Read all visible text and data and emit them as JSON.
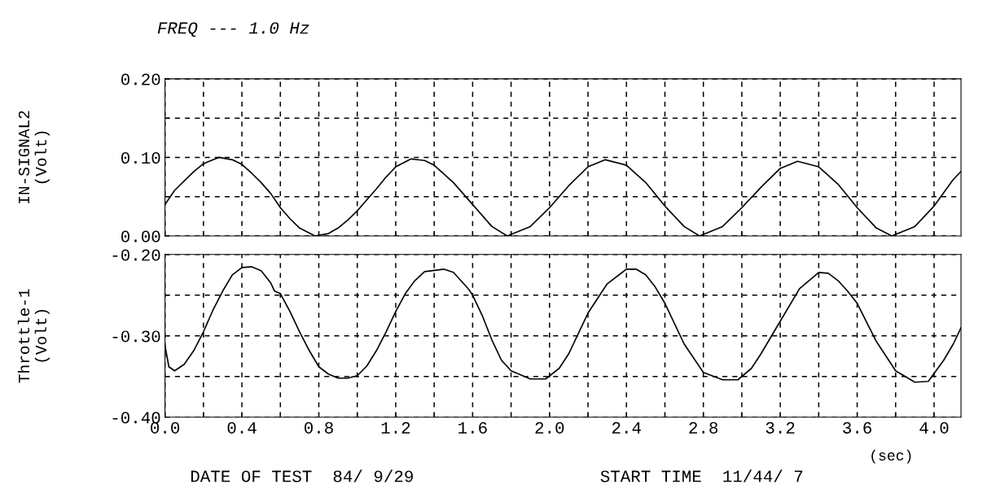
{
  "chart_data": [
    {
      "type": "line",
      "title": "FREQ --- 1.0 Hz",
      "ylabel": "IN-SIGNAL2\n(Volt)",
      "xlim": [
        0,
        4.14
      ],
      "ylim": [
        0,
        0.2
      ],
      "xticks": [
        0,
        {
          "value": 0.2,
          "label": null
        },
        0.4,
        {
          "value": 0.6,
          "label": null
        },
        0.8,
        {
          "value": 1.0,
          "label": null
        },
        1.2,
        {
          "value": 1.4,
          "label": null
        },
        1.6,
        {
          "value": 1.8,
          "label": null
        },
        2.0,
        {
          "value": 2.2,
          "label": null
        },
        2.4,
        {
          "value": 2.6,
          "label": null
        },
        2.8,
        {
          "value": 3.0,
          "label": null
        },
        3.2,
        {
          "value": 3.4,
          "label": null
        },
        3.6,
        {
          "value": 3.8,
          "label": null
        },
        4.0
      ],
      "yticks": [
        {
          "value": 0,
          "label": "0.00"
        },
        {
          "value": 0.05,
          "label": null
        },
        {
          "value": 0.1,
          "label": "0.10"
        },
        {
          "value": 0.15,
          "label": null
        },
        {
          "value": 0.2,
          "label": "0.20"
        }
      ],
      "tick_labels": "y",
      "grid": true,
      "line_style": "solid",
      "series": [
        {
          "color": "#000000",
          "x": [
            0.0,
            0.05,
            0.1,
            0.15,
            0.2,
            0.28,
            0.35,
            0.4,
            0.45,
            0.5,
            0.55,
            0.6,
            0.65,
            0.7,
            0.78,
            0.85,
            0.9,
            0.95,
            1.0,
            1.05,
            1.1,
            1.15,
            1.2,
            1.28,
            1.35,
            1.4,
            1.5,
            1.6,
            1.7,
            1.78,
            1.9,
            2.0,
            2.1,
            2.2,
            2.29,
            2.4,
            2.5,
            2.6,
            2.7,
            2.78,
            2.9,
            3.0,
            3.1,
            3.2,
            3.29,
            3.4,
            3.5,
            3.6,
            3.7,
            3.78,
            3.9,
            4.0,
            4.1,
            4.14
          ],
          "values": [
            0.04,
            0.058,
            0.07,
            0.082,
            0.092,
            0.1,
            0.097,
            0.091,
            0.08,
            0.068,
            0.054,
            0.036,
            0.022,
            0.01,
            0.0,
            0.003,
            0.01,
            0.02,
            0.032,
            0.046,
            0.06,
            0.075,
            0.088,
            0.098,
            0.096,
            0.09,
            0.068,
            0.04,
            0.012,
            0.0,
            0.012,
            0.036,
            0.064,
            0.088,
            0.097,
            0.09,
            0.068,
            0.038,
            0.012,
            0.0,
            0.012,
            0.036,
            0.062,
            0.086,
            0.095,
            0.088,
            0.066,
            0.036,
            0.01,
            0.0,
            0.012,
            0.038,
            0.072,
            0.082
          ]
        }
      ]
    },
    {
      "type": "line",
      "ylabel": "Throttle-1\n(Volt)",
      "xlabel": "(sec)",
      "xlim": [
        0,
        4.14
      ],
      "ylim": [
        -0.4,
        -0.2
      ],
      "xticks": [
        {
          "value": 0,
          "label": "0.0"
        },
        {
          "value": 0.2,
          "label": null
        },
        0.4,
        {
          "value": 0.6,
          "label": null
        },
        0.8,
        {
          "value": 1.0,
          "label": null
        },
        1.2,
        {
          "value": 1.4,
          "label": null
        },
        1.6,
        {
          "value": 1.8,
          "label": null
        },
        {
          "value": 2.0,
          "label": "2.0"
        },
        {
          "value": 2.2,
          "label": null
        },
        2.4,
        {
          "value": 2.6,
          "label": null
        },
        2.8,
        {
          "value": 3.0,
          "label": null
        },
        3.2,
        {
          "value": 3.4,
          "label": null
        },
        3.6,
        {
          "value": 3.8,
          "label": null
        },
        {
          "value": 4.0,
          "label": "4.0"
        }
      ],
      "yticks": [
        {
          "value": -0.4,
          "label": "-0.40"
        },
        {
          "value": -0.35,
          "label": null
        },
        {
          "value": -0.3,
          "label": "-0.30"
        },
        {
          "value": -0.25,
          "label": null
        },
        {
          "value": -0.2,
          "label": "-0.20"
        }
      ],
      "grid": true,
      "line_style": "solid",
      "annotations": [
        "DATE OF TEST  84/ 9/29",
        "START TIME  11/44/ 7"
      ],
      "series": [
        {
          "color": "#000000",
          "x": [
            0.0,
            0.02,
            0.05,
            0.1,
            0.15,
            0.2,
            0.25,
            0.3,
            0.35,
            0.4,
            0.45,
            0.5,
            0.55,
            0.57,
            0.6,
            0.65,
            0.7,
            0.75,
            0.8,
            0.85,
            0.9,
            0.95,
            1.0,
            1.05,
            1.1,
            1.15,
            1.2,
            1.25,
            1.3,
            1.35,
            1.45,
            1.5,
            1.55,
            1.58,
            1.6,
            1.65,
            1.7,
            1.75,
            1.8,
            1.9,
            1.98,
            2.05,
            2.1,
            2.2,
            2.3,
            2.4,
            2.45,
            2.5,
            2.55,
            2.6,
            2.7,
            2.8,
            2.9,
            2.98,
            3.05,
            3.1,
            3.2,
            3.3,
            3.4,
            3.45,
            3.5,
            3.55,
            3.6,
            3.7,
            3.8,
            3.9,
            3.97,
            4.05,
            4.1,
            4.14
          ],
          "values": [
            -0.312,
            -0.338,
            -0.343,
            -0.335,
            -0.318,
            -0.295,
            -0.268,
            -0.245,
            -0.225,
            -0.216,
            -0.215,
            -0.22,
            -0.235,
            -0.245,
            -0.248,
            -0.27,
            -0.295,
            -0.318,
            -0.338,
            -0.347,
            -0.352,
            -0.352,
            -0.349,
            -0.337,
            -0.318,
            -0.295,
            -0.27,
            -0.248,
            -0.232,
            -0.221,
            -0.218,
            -0.222,
            -0.235,
            -0.243,
            -0.25,
            -0.275,
            -0.305,
            -0.33,
            -0.343,
            -0.353,
            -0.353,
            -0.34,
            -0.322,
            -0.272,
            -0.236,
            -0.218,
            -0.218,
            -0.225,
            -0.24,
            -0.26,
            -0.31,
            -0.345,
            -0.354,
            -0.354,
            -0.34,
            -0.322,
            -0.282,
            -0.242,
            -0.222,
            -0.223,
            -0.232,
            -0.245,
            -0.26,
            -0.307,
            -0.343,
            -0.357,
            -0.356,
            -0.33,
            -0.31,
            -0.29
          ]
        }
      ]
    }
  ]
}
